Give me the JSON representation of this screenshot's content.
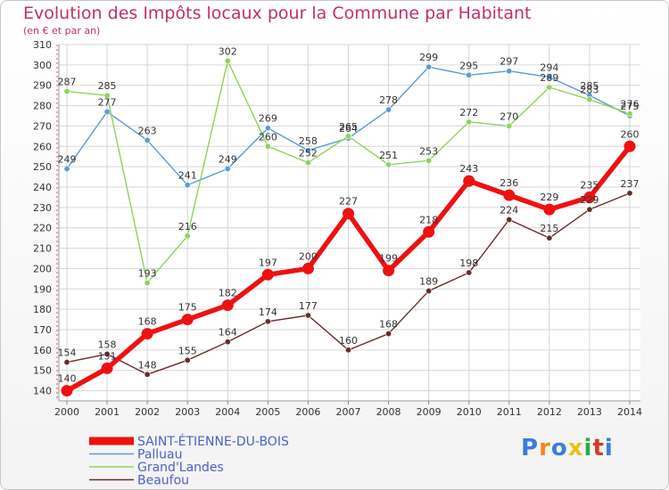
{
  "title": "Evolution des Impôts locaux pour la Commune par Habitant",
  "subtitle": "(en € et par an)",
  "logo": "Proxiti",
  "chart_data": {
    "type": "line",
    "title": "Evolution des Impôts locaux pour la Commune par Habitant",
    "subtitle": "(en € et par an)",
    "xlabel": "",
    "ylabel": "",
    "ylim": [
      135,
      310
    ],
    "yticks": [
      140,
      150,
      160,
      170,
      180,
      190,
      200,
      210,
      220,
      230,
      240,
      250,
      260,
      270,
      280,
      290,
      300,
      310
    ],
    "grid": true,
    "legend_position": "bottom-left",
    "categories": [
      "2000",
      "2001",
      "2002",
      "2003",
      "2004",
      "2005",
      "2006",
      "2007",
      "2008",
      "2009",
      "2010",
      "2011",
      "2012",
      "2013",
      "2014"
    ],
    "series": [
      {
        "name": "Palluau",
        "color": "#5b9bd5",
        "values": [
          249,
          277,
          263,
          241,
          249,
          269,
          258,
          264,
          278,
          299,
          295,
          297,
          294,
          285,
          275
        ],
        "labels": [
          "249",
          "277",
          "263",
          "241",
          "249",
          "269",
          "258",
          "264",
          "278",
          "299",
          "295",
          "297",
          "294",
          "285",
          "275"
        ]
      },
      {
        "name": "Grand'Landes",
        "color": "#8ed35a",
        "values": [
          287,
          285,
          193,
          216,
          302,
          260,
          252,
          265,
          251,
          253,
          272,
          270,
          289,
          283,
          276
        ],
        "labels": [
          "287",
          "285",
          "193",
          "216",
          "302",
          "260",
          "252",
          "265",
          "251",
          "253",
          "272",
          "270",
          "289",
          "283",
          "276"
        ]
      },
      {
        "name": "Beaufou",
        "color": "#6b2a2a",
        "values": [
          154,
          158,
          148,
          155,
          164,
          174,
          177,
          160,
          168,
          189,
          198,
          224,
          215,
          229,
          237
        ],
        "labels": [
          "154",
          "158",
          "148",
          "155",
          "164",
          "174",
          "177",
          "160",
          "168",
          "189",
          "198",
          "224",
          "215",
          "229",
          "237"
        ]
      },
      {
        "name": "SAINT-ÉTIENNE-DU-BOIS",
        "color": "#ee1111",
        "values": [
          140,
          151,
          168,
          175,
          182,
          197,
          200,
          227,
          199,
          218,
          243,
          236,
          229,
          235,
          260
        ],
        "labels": [
          "140",
          "151",
          "168",
          "175",
          "182",
          "197",
          "200",
          "227",
          "199",
          "218",
          "243",
          "236",
          "229",
          "235",
          "260"
        ]
      }
    ]
  },
  "legend": [
    {
      "name": "SAINT-ÉTIENNE-DU-BOIS",
      "color": "#ee1111"
    },
    {
      "name": "Palluau",
      "color": "#5b9bd5"
    },
    {
      "name": "Grand'Landes",
      "color": "#8ed35a"
    },
    {
      "name": "Beaufou",
      "color": "#6b2a2a"
    }
  ]
}
